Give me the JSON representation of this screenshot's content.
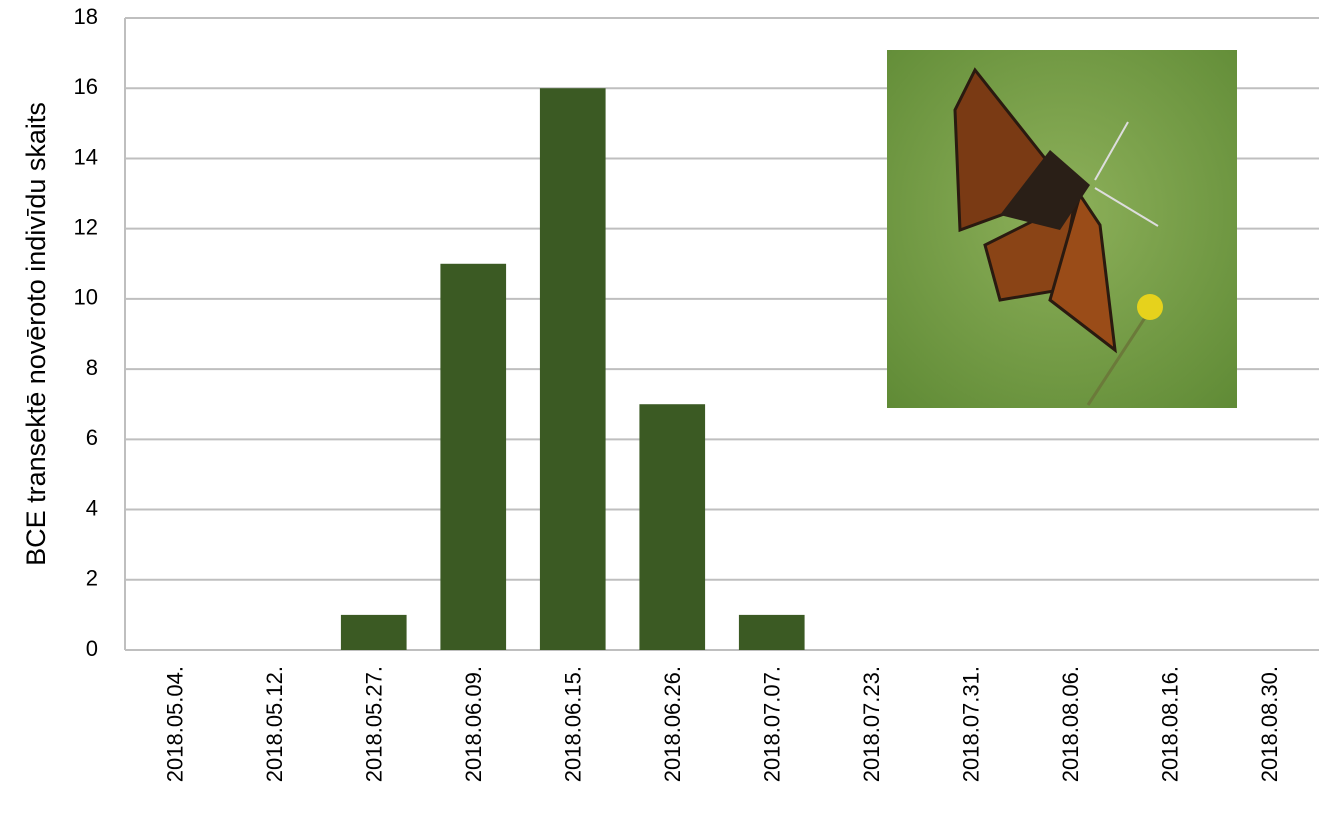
{
  "chart_data": {
    "type": "bar",
    "y_label": "BCE transektē novēroto indivīdu skaits",
    "categories": [
      "2018.05.04.",
      "2018.05.12.",
      "2018.05.27.",
      "2018.06.09.",
      "2018.06.15.",
      "2018.06.26.",
      "2018.07.07.",
      "2018.07.23.",
      "2018.07.31.",
      "2018.08.06.",
      "2018.08.16.",
      "2018.08.30."
    ],
    "values": [
      0,
      0,
      1,
      11,
      16,
      7,
      1,
      0,
      0,
      0,
      0,
      0
    ],
    "color": "#3b5a23",
    "ylim": [
      0,
      18
    ],
    "yticks": [
      0,
      2,
      4,
      6,
      8,
      10,
      12,
      14,
      16,
      18
    ],
    "grid": true
  }
}
